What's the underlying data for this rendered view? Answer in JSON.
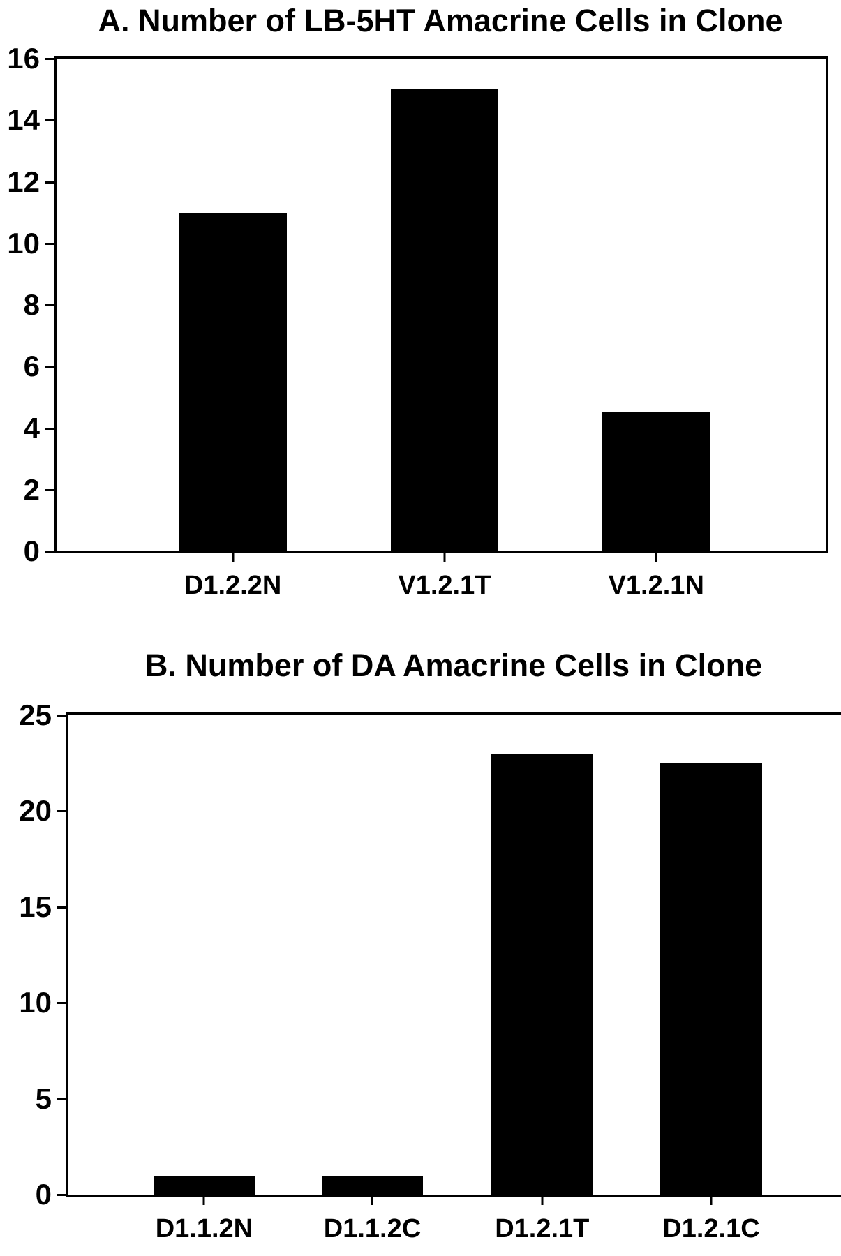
{
  "figure_background": "#ffffff",
  "text_color": "#000000",
  "chart_data": [
    {
      "type": "bar",
      "panel": "a",
      "title": "A. Number of LB-5HT Amacrine Cells in Clone",
      "categories": [
        "D1.2.2N",
        "V1.2.1T",
        "V1.2.1N"
      ],
      "values": [
        11,
        15,
        4.5
      ],
      "xlabel": "",
      "ylabel": "",
      "ylim": [
        0,
        16
      ],
      "yticks": [
        0,
        2,
        4,
        6,
        8,
        10,
        12,
        14,
        16
      ],
      "grid": false,
      "legend": false,
      "bar_color": "#000000",
      "bar_width_frac": 0.14,
      "bar_centers_frac": [
        0.229,
        0.504,
        0.779
      ]
    },
    {
      "type": "bar",
      "panel": "b",
      "title": "B. Number of DA Amacrine Cells in Clone",
      "categories": [
        "D1.1.2N",
        "D1.1.2C",
        "D1.2.1T",
        "D1.2.1C"
      ],
      "values": [
        1,
        1,
        23,
        22.5
      ],
      "xlabel": "",
      "ylabel": "",
      "ylim": [
        0,
        25
      ],
      "yticks": [
        0,
        5,
        10,
        15,
        20,
        25
      ],
      "grid": false,
      "legend": false,
      "bar_color": "#000000",
      "bar_width_frac": 0.128,
      "bar_centers_frac": [
        0.171,
        0.383,
        0.597,
        0.81
      ]
    }
  ]
}
